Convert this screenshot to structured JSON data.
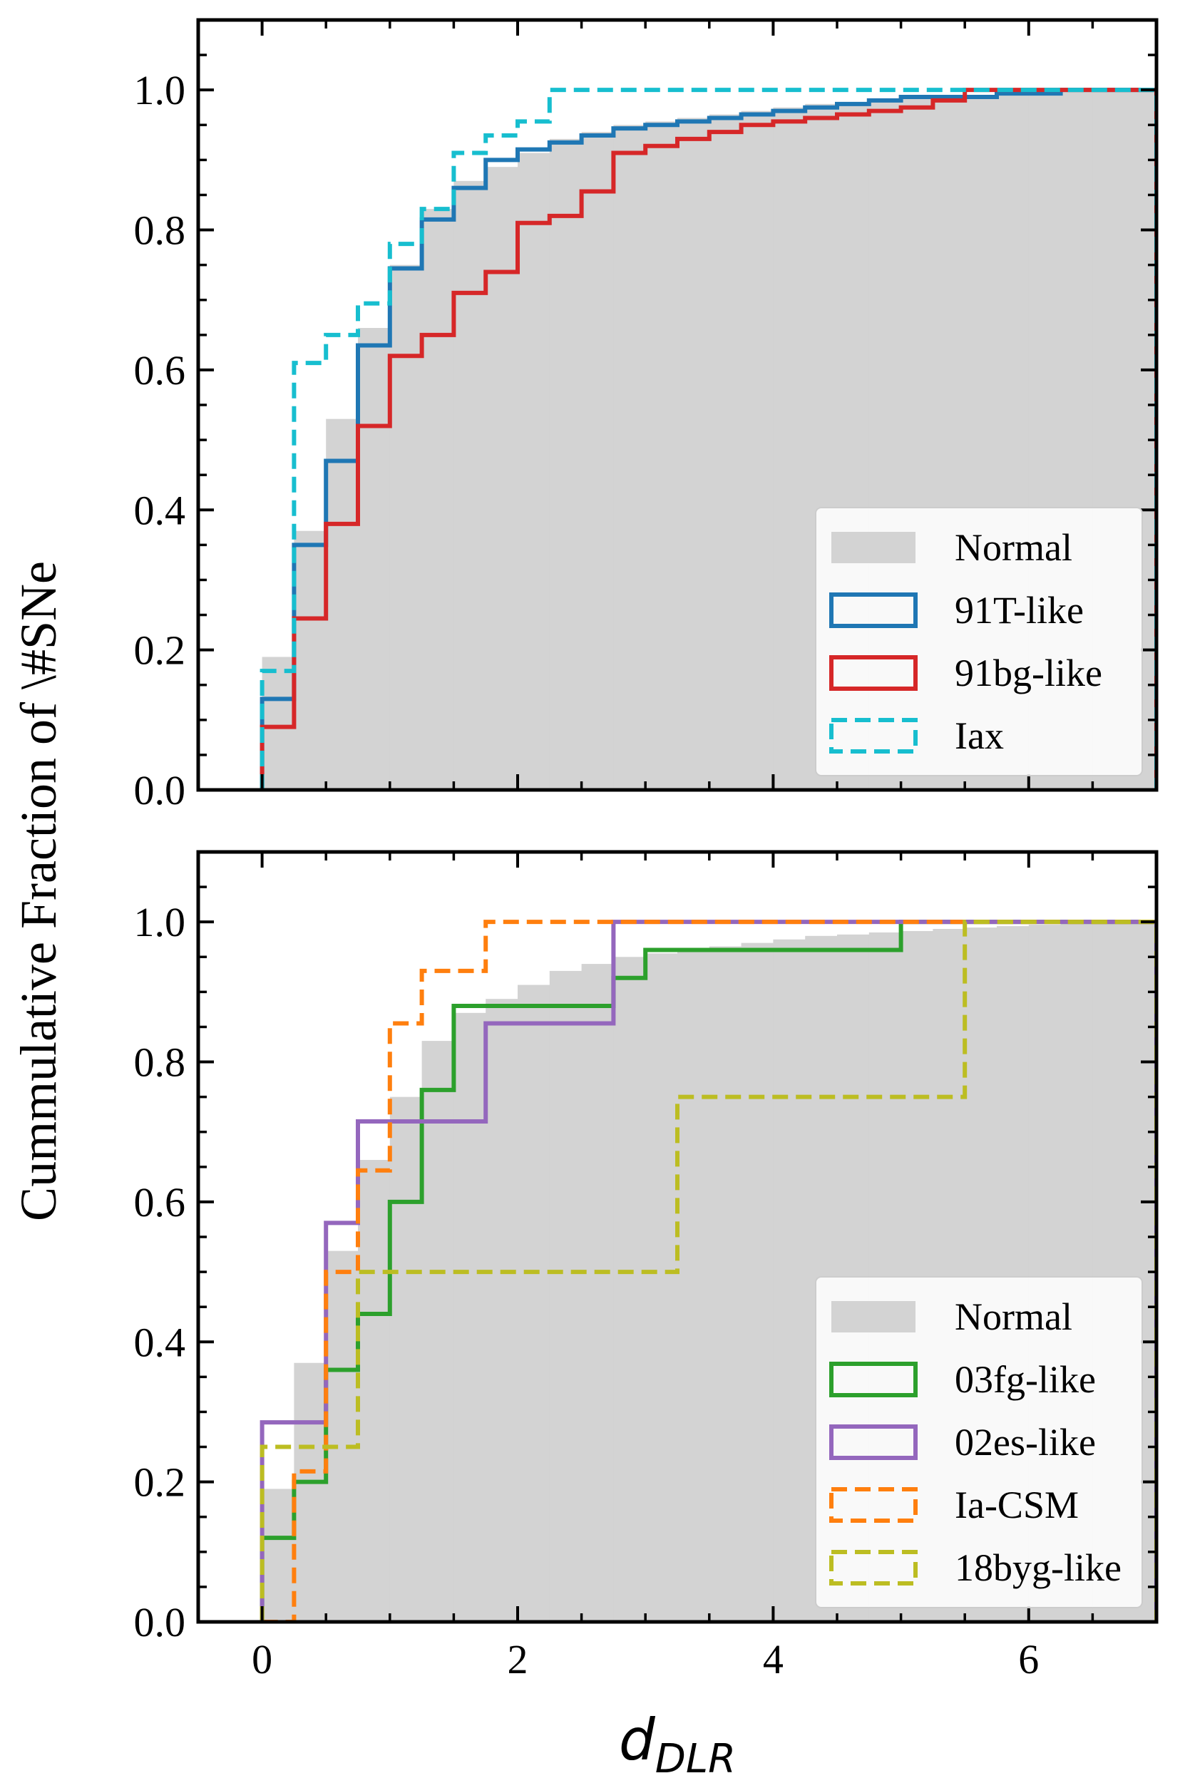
{
  "figure": {
    "ylabel": "Cummulative Fraction of \\#SNe",
    "xlabel_main": "d",
    "xlabel_sub": "DLR"
  },
  "chart_data": [
    {
      "type": "line",
      "subtype": "cumulative step histogram",
      "xlim": [
        -0.5,
        7.0
      ],
      "ylim": [
        0.0,
        1.1
      ],
      "x_ticks": [
        0,
        2,
        4,
        6
      ],
      "x_tick_labels": [
        "0",
        "2",
        "4",
        "6"
      ],
      "y_ticks": [
        0.0,
        0.2,
        0.4,
        0.6,
        0.8,
        1.0
      ],
      "y_tick_labels": [
        "0.0",
        "0.2",
        "0.4",
        "0.6",
        "0.8",
        "1.0"
      ],
      "show_x_tick_labels": false,
      "grid": false,
      "legend_position": "lower right",
      "bin_edges": [
        0,
        0.25,
        0.5,
        0.75,
        1.0,
        1.25,
        1.5,
        1.75,
        2.0,
        2.25,
        2.5,
        2.75,
        3.0,
        3.25,
        3.5,
        3.75,
        4.0,
        4.25,
        4.5,
        4.75,
        5.0,
        5.25,
        5.5,
        5.75,
        6.0,
        6.25,
        6.5,
        6.75,
        7.0
      ],
      "series": [
        {
          "name": "Normal",
          "style": "filled",
          "color": "#d3d3d3",
          "values": [
            0.19,
            0.37,
            0.53,
            0.66,
            0.75,
            0.83,
            0.87,
            0.89,
            0.91,
            0.93,
            0.94,
            0.95,
            0.955,
            0.96,
            0.965,
            0.97,
            0.975,
            0.98,
            0.982,
            0.985,
            0.987,
            0.99,
            0.992,
            0.994,
            0.996,
            0.997,
            0.998,
            1.0
          ]
        },
        {
          "name": "91T-like",
          "style": "solid",
          "color": "#1f77b4",
          "values": [
            0.13,
            0.35,
            0.47,
            0.635,
            0.745,
            0.815,
            0.86,
            0.9,
            0.915,
            0.925,
            0.935,
            0.945,
            0.95,
            0.955,
            0.96,
            0.965,
            0.97,
            0.975,
            0.98,
            0.985,
            0.99,
            0.99,
            0.99,
            0.995,
            0.995,
            1.0,
            1.0,
            1.0
          ]
        },
        {
          "name": "91bg-like",
          "style": "solid",
          "color": "#d62728",
          "values": [
            0.09,
            0.245,
            0.38,
            0.52,
            0.62,
            0.65,
            0.71,
            0.74,
            0.81,
            0.82,
            0.855,
            0.91,
            0.92,
            0.93,
            0.94,
            0.95,
            0.955,
            0.96,
            0.965,
            0.97,
            0.975,
            0.985,
            1.0,
            1.0,
            1.0,
            1.0,
            1.0,
            1.0
          ]
        },
        {
          "name": "Iax",
          "style": "dashed",
          "color": "#17becf",
          "values": [
            0.17,
            0.61,
            0.65,
            0.695,
            0.78,
            0.83,
            0.91,
            0.935,
            0.955,
            1.0,
            1.0,
            1.0,
            1.0,
            1.0,
            1.0,
            1.0,
            1.0,
            1.0,
            1.0,
            1.0,
            1.0,
            1.0,
            1.0,
            1.0,
            1.0,
            1.0,
            1.0,
            1.0
          ]
        }
      ]
    },
    {
      "type": "line",
      "subtype": "cumulative step histogram",
      "xlim": [
        -0.5,
        7.0
      ],
      "ylim": [
        0.0,
        1.1
      ],
      "x_ticks": [
        0,
        2,
        4,
        6
      ],
      "x_tick_labels": [
        "0",
        "2",
        "4",
        "6"
      ],
      "y_ticks": [
        0.0,
        0.2,
        0.4,
        0.6,
        0.8,
        1.0
      ],
      "y_tick_labels": [
        "0.0",
        "0.2",
        "0.4",
        "0.6",
        "0.8",
        "1.0"
      ],
      "show_x_tick_labels": true,
      "grid": false,
      "legend_position": "lower right",
      "bin_edges": [
        0,
        0.25,
        0.5,
        0.75,
        1.0,
        1.25,
        1.5,
        1.75,
        2.0,
        2.25,
        2.5,
        2.75,
        3.0,
        3.25,
        3.5,
        3.75,
        4.0,
        4.25,
        4.5,
        4.75,
        5.0,
        5.25,
        5.5,
        5.75,
        6.0,
        6.25,
        6.5,
        6.75,
        7.0
      ],
      "series": [
        {
          "name": "Normal",
          "style": "filled",
          "color": "#d3d3d3",
          "values": [
            0.19,
            0.37,
            0.53,
            0.66,
            0.75,
            0.83,
            0.87,
            0.89,
            0.91,
            0.93,
            0.94,
            0.95,
            0.955,
            0.96,
            0.965,
            0.97,
            0.975,
            0.98,
            0.982,
            0.985,
            0.987,
            0.99,
            0.992,
            0.994,
            0.996,
            0.997,
            0.998,
            1.0
          ]
        },
        {
          "name": "03fg-like",
          "style": "solid",
          "color": "#2ca02c",
          "values": [
            0.12,
            0.2,
            0.36,
            0.44,
            0.6,
            0.76,
            0.88,
            0.88,
            0.88,
            0.88,
            0.88,
            0.92,
            0.96,
            0.96,
            0.96,
            0.96,
            0.96,
            0.96,
            0.96,
            0.96,
            1.0,
            1.0,
            1.0,
            1.0,
            1.0,
            1.0,
            1.0,
            1.0
          ]
        },
        {
          "name": "02es-like",
          "style": "solid",
          "color": "#9467bd",
          "values": [
            0.285,
            0.285,
            0.57,
            0.715,
            0.715,
            0.715,
            0.715,
            0.855,
            0.855,
            0.855,
            0.855,
            1.0,
            1.0,
            1.0,
            1.0,
            1.0,
            1.0,
            1.0,
            1.0,
            1.0,
            1.0,
            1.0,
            1.0,
            1.0,
            1.0,
            1.0,
            1.0,
            1.0
          ]
        },
        {
          "name": "Ia-CSM",
          "style": "dashed",
          "color": "#ff7f0e",
          "values": [
            0.0,
            0.215,
            0.5,
            0.645,
            0.855,
            0.93,
            0.93,
            1.0,
            1.0,
            1.0,
            1.0,
            1.0,
            1.0,
            1.0,
            1.0,
            1.0,
            1.0,
            1.0,
            1.0,
            1.0,
            1.0,
            1.0,
            1.0,
            1.0,
            1.0,
            1.0,
            1.0,
            1.0
          ]
        },
        {
          "name": "18byg-like",
          "style": "dashed",
          "color": "#bcbd22",
          "values": [
            0.25,
            0.25,
            0.25,
            0.5,
            0.5,
            0.5,
            0.5,
            0.5,
            0.5,
            0.5,
            0.5,
            0.5,
            0.5,
            0.75,
            0.75,
            0.75,
            0.75,
            0.75,
            0.75,
            0.75,
            0.75,
            0.75,
            1.0,
            1.0,
            1.0,
            1.0,
            1.0,
            1.0
          ]
        }
      ]
    }
  ]
}
